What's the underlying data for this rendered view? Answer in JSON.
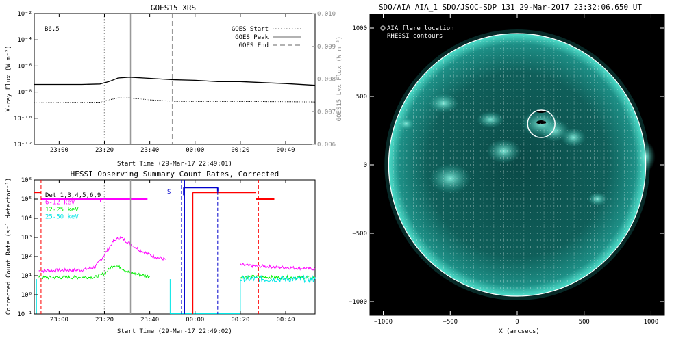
{
  "chart_data": [
    {
      "type": "line",
      "title": "GOES15 XRS",
      "flare_class": "B6.5",
      "xlabel": "Start Time (29-Mar-17 22:49:01)",
      "ylabel": "X-ray Flux (W m⁻²)",
      "ylabel_right": "GOES15 Lyx Flux (W m⁻²)",
      "x_range_min": [
        -11,
        113
      ],
      "x_ticks": [
        {
          "label": "23:00",
          "m": 0
        },
        {
          "label": "23:20",
          "m": 20
        },
        {
          "label": "23:40",
          "m": 40
        },
        {
          "label": "00:00",
          "m": 60
        },
        {
          "label": "00:20",
          "m": 80
        },
        {
          "label": "00:40",
          "m": 100
        }
      ],
      "y_log_range": [
        -12,
        -2
      ],
      "y_ticks": [
        "10⁻²",
        "10⁻⁴",
        "10⁻⁶",
        "10⁻⁸",
        "10⁻¹⁰",
        "10⁻¹²"
      ],
      "y_ticks_exp": [
        -2,
        -4,
        -6,
        -8,
        -10,
        -12
      ],
      "y_right_range": [
        0.006,
        0.01
      ],
      "y_right_ticks": [
        "0.010",
        "0.009",
        "0.008",
        "0.007",
        "0.006"
      ],
      "y_right_ticks_val": [
        0.01,
        0.009,
        0.008,
        0.007,
        0.006
      ],
      "legend": [
        {
          "label": "GOES Start",
          "style": "dotted"
        },
        {
          "label": "GOES Peak",
          "style": "solid"
        },
        {
          "label": "GOES End",
          "style": "dashed"
        }
      ],
      "markers_min": {
        "start": 20,
        "peak": 31.5,
        "end": 50
      },
      "series": [
        {
          "style": "solid",
          "points": [
            [
              -11,
              -7.42
            ],
            [
              10,
              -7.42
            ],
            [
              18,
              -7.38
            ],
            [
              22,
              -7.2
            ],
            [
              26,
              -6.92
            ],
            [
              31,
              -6.86
            ],
            [
              40,
              -6.95
            ],
            [
              50,
              -7.05
            ],
            [
              60,
              -7.1
            ],
            [
              70,
              -7.2
            ],
            [
              80,
              -7.2
            ],
            [
              90,
              -7.28
            ],
            [
              100,
              -7.35
            ],
            [
              113,
              -7.48
            ]
          ]
        },
        {
          "style": "dotted",
          "points": [
            [
              -11,
              -8.82
            ],
            [
              18,
              -8.78
            ],
            [
              22,
              -8.6
            ],
            [
              26,
              -8.45
            ],
            [
              31,
              -8.45
            ],
            [
              40,
              -8.6
            ],
            [
              50,
              -8.7
            ],
            [
              60,
              -8.72
            ],
            [
              80,
              -8.72
            ],
            [
              100,
              -8.74
            ],
            [
              113,
              -8.76
            ]
          ]
        }
      ]
    },
    {
      "type": "line",
      "title": "HESSI Observing Summary Count Rates, Corrected",
      "xlabel": "Start Time (29-Mar-17 22:49:02)",
      "ylabel": "Corrected Count Rate (s⁻¹ detector⁻¹)",
      "x_range_min": [
        -11,
        113
      ],
      "x_ticks": [
        {
          "label": "23:00",
          "m": 0
        },
        {
          "label": "23:20",
          "m": 20
        },
        {
          "label": "23:40",
          "m": 40
        },
        {
          "label": "00:00",
          "m": 60
        },
        {
          "label": "00:20",
          "m": 80
        },
        {
          "label": "00:40",
          "m": 100
        }
      ],
      "y_log_range": [
        -1,
        6
      ],
      "y_ticks": [
        "10⁶",
        "10⁵",
        "10⁴",
        "10³",
        "10²",
        "10¹",
        "10⁰",
        "10⁻¹"
      ],
      "y_ticks_exp": [
        6,
        5,
        4,
        3,
        2,
        1,
        0,
        -1
      ],
      "legend": [
        {
          "label": "Det 1,3,4,5,6,9",
          "color": "#000000"
        },
        {
          "label": "6-12 keV",
          "color": "#ff00ff"
        },
        {
          "label": "12-25 keV",
          "color": "#00ee00"
        },
        {
          "label": "25-50 keV",
          "color": "#00e5e5"
        }
      ],
      "flag_labels": {
        "F": "F",
        "S": "S"
      },
      "series": [
        {
          "name": "6-12 keV",
          "color": "#ff00ff",
          "points": [
            [
              -9,
              1.25
            ],
            [
              10,
              1.3
            ],
            [
              16,
              1.45
            ],
            [
              20,
              2.1
            ],
            [
              24,
              2.8
            ],
            [
              27,
              3.0
            ],
            [
              31,
              2.7
            ],
            [
              36,
              2.3
            ],
            [
              42,
              2.0
            ],
            [
              47,
              1.85
            ],
            [
              50,
              1.8
            ],
            [
              80,
              1.55
            ],
            [
              87,
              1.5
            ],
            [
              95,
              1.45
            ],
            [
              105,
              1.4
            ],
            [
              113,
              1.35
            ]
          ]
        },
        {
          "name": "12-25 keV",
          "color": "#00ee00",
          "points": [
            [
              -9,
              0.9
            ],
            [
              16,
              0.92
            ],
            [
              20,
              1.1
            ],
            [
              24,
              1.55
            ],
            [
              27,
              1.45
            ],
            [
              31,
              1.15
            ],
            [
              40,
              0.95
            ],
            [
              50,
              0.92
            ],
            [
              80,
              0.95
            ],
            [
              90,
              0.92
            ],
            [
              113,
              0.9
            ]
          ]
        },
        {
          "name": "25-50 keV",
          "color": "#00e5e5",
          "points": [
            [
              -9,
              0.82
            ],
            [
              50,
              0.82
            ],
            [
              80,
              0.82
            ],
            [
              113,
              0.82
            ]
          ]
        }
      ],
      "flags": [
        {
          "color": "#ff0000",
          "segments": [
            [
              [
                -11,
                5.35
              ],
              [
                -8,
                5.35
              ]
            ],
            [
              [
                59,
                5.35
              ],
              [
                87,
                5.35
              ]
            ],
            [
              [
                87,
                5.0
              ],
              [
                95,
                5.0
              ]
            ]
          ]
        },
        {
          "color": "#ff00ff",
          "segments": [
            [
              [
                -8,
                5.0
              ],
              [
                39,
                5.0
              ]
            ]
          ]
        },
        {
          "color": "#0000cc",
          "segments": [
            [
              [
                55,
                5.6
              ],
              [
                70,
                5.6
              ]
            ]
          ]
        }
      ]
    },
    {
      "type": "heatmap",
      "title": "SDO/AIA AIA_1 SDO/JSOC-SDP 131 29-Mar-2017 23:32:06.650 UT",
      "xlabel": "X (arcsecs)",
      "ylabel": "",
      "x_range": [
        -1100,
        1100
      ],
      "y_range": [
        -1100,
        1100
      ],
      "x_ticks": [
        -1000,
        -500,
        0,
        500,
        1000
      ],
      "y_ticks": [
        1000,
        500,
        0,
        -500,
        -1000
      ],
      "x_ticks_labels": [
        "−1000",
        "−500",
        "0",
        "500",
        "1000"
      ],
      "y_ticks_labels": [
        "1000",
        "500",
        "0",
        "−500",
        "−1000"
      ],
      "legend": [
        {
          "label": "AIA flare location",
          "marker": "circle"
        },
        {
          "label": "RHESSI contours",
          "marker": "none"
        }
      ],
      "flare_location": {
        "x": 180,
        "y": 300
      },
      "limb_radius": 960
    }
  ],
  "colors": {
    "hessi_det_line": "#ff0000",
    "hessi_attenuator": "#0000cc",
    "sun_disk": "#0e5b57",
    "sun_limb_glow": "#34c9b6",
    "panel_bg": "#000000"
  }
}
